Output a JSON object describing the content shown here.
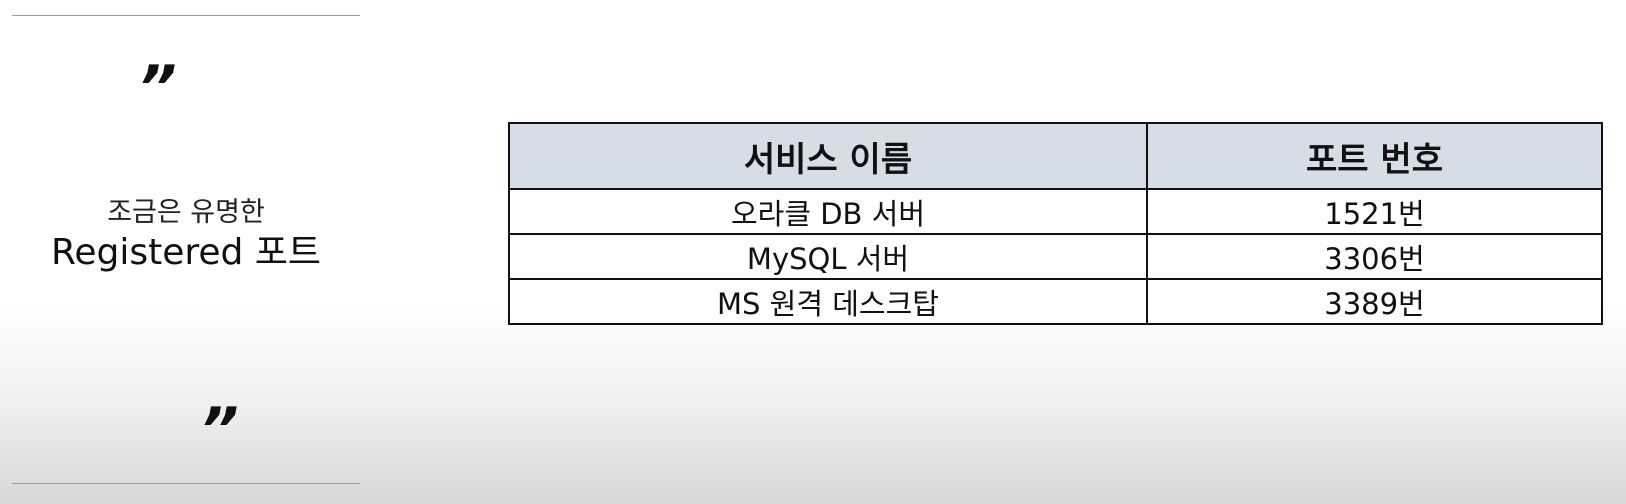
{
  "caption": {
    "sub": "조금은 유명한",
    "main": "Registered 포트",
    "open_quote": "”",
    "close_quote": "”"
  },
  "table": {
    "headers": [
      "서비스 이름",
      "포트 번호"
    ],
    "rows": [
      [
        "오라클 DB 서버",
        "1521번"
      ],
      [
        "MySQL 서버",
        "3306번"
      ],
      [
        "MS 원격 데스크탑",
        "3389번"
      ]
    ]
  },
  "colors": {
    "header_bg": "#d6dde5",
    "border": "#111111",
    "rule": "#9a9a9a"
  }
}
